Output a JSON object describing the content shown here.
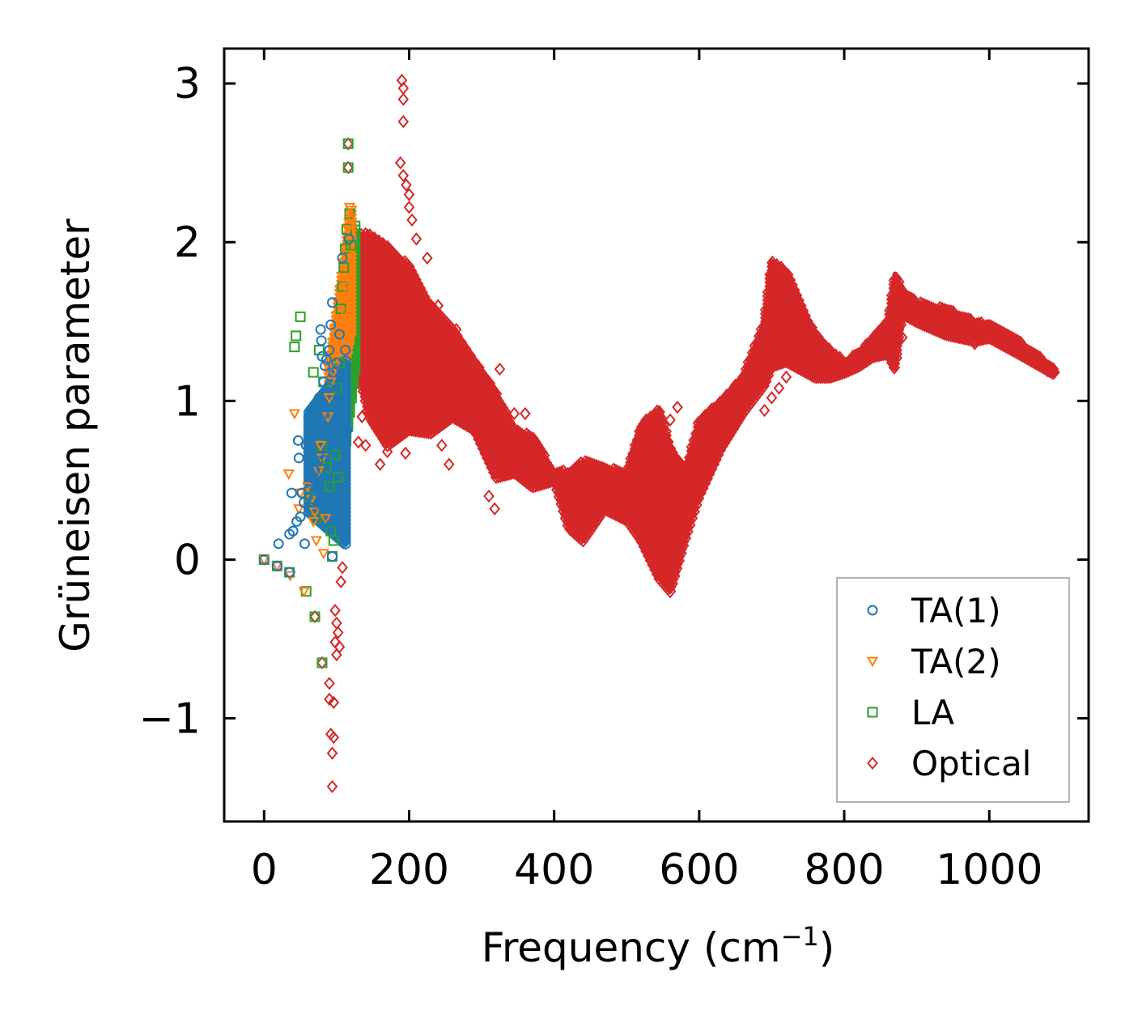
{
  "chart_data": {
    "type": "scatter",
    "title": "",
    "xlabel": "Frequency (cm",
    "xlabel_sup": "−1",
    "xlabel_end": ")",
    "ylabel": "Grüneisen parameter",
    "xlim": [
      -55,
      1137
    ],
    "ylim": [
      -1.65,
      3.22
    ],
    "xticks": [
      0,
      200,
      400,
      600,
      800,
      1000
    ],
    "xtick_labels": [
      "0",
      "200",
      "400",
      "600",
      "800",
      "1000"
    ],
    "yticks": [
      -1,
      0,
      1,
      2,
      3
    ],
    "ytick_labels": [
      "−1",
      "0",
      "1",
      "2",
      "3"
    ],
    "legend_position": "lower-right",
    "series": [
      {
        "name": "TA(1)",
        "marker": "circle",
        "color": "#1f77b4",
        "points": [
          [
            0,
            0
          ],
          [
            18,
            -0.04
          ],
          [
            20,
            0.1
          ],
          [
            35,
            0.16
          ],
          [
            35,
            -0.08
          ],
          [
            38,
            0.42
          ],
          [
            40,
            0.18
          ],
          [
            45,
            0.24
          ],
          [
            47,
            0.75
          ],
          [
            48,
            0.64
          ],
          [
            50,
            0.27
          ],
          [
            52,
            0.42
          ],
          [
            55,
            0.36
          ],
          [
            56,
            0.1
          ],
          [
            58,
            0.72
          ],
          [
            62,
            0.44
          ],
          [
            62,
            0.64
          ],
          [
            65,
            0.82
          ],
          [
            66,
            0.78
          ],
          [
            68,
            0.38
          ],
          [
            68,
            0.9
          ],
          [
            70,
            0.5
          ],
          [
            70,
            0.56
          ],
          [
            72,
            0.86
          ],
          [
            74,
            0.62
          ],
          [
            75,
            0.96
          ],
          [
            76,
            1.02
          ],
          [
            78,
            1.45
          ],
          [
            79,
            1.38
          ],
          [
            80,
            1.28
          ],
          [
            80,
            0.34
          ],
          [
            82,
            0.92
          ],
          [
            82,
            1.12
          ],
          [
            84,
            0.78
          ],
          [
            84,
            1.22
          ],
          [
            86,
            1.26
          ],
          [
            86,
            0.68
          ],
          [
            88,
            0.54
          ],
          [
            88,
            1.08
          ],
          [
            90,
            0.36
          ],
          [
            90,
            1.32
          ],
          [
            92,
            1.48
          ],
          [
            92,
            0.22
          ],
          [
            94,
            1.62
          ],
          [
            94,
            0.02
          ],
          [
            96,
            1.18
          ],
          [
            98,
            0.86
          ],
          [
            100,
            1.24
          ],
          [
            102,
            1.02
          ],
          [
            104,
            1.42
          ],
          [
            106,
            1.12
          ],
          [
            108,
            1.9
          ],
          [
            110,
            0.96
          ],
          [
            112,
            1.32
          ],
          [
            115,
            0.82
          ],
          [
            117,
            2.02
          ]
        ],
        "band": {
          "x": [
            62,
            112
          ],
          "ylow": [
            0.3,
            0.1
          ],
          "yhigh": [
            0.95,
            1.25
          ]
        }
      },
      {
        "name": "TA(2)",
        "marker": "triangle-down",
        "color": "#ff7f0e",
        "points": [
          [
            0,
            0
          ],
          [
            18,
            -0.04
          ],
          [
            34,
            0.54
          ],
          [
            36,
            -0.1
          ],
          [
            42,
            0.92
          ],
          [
            48,
            0.32
          ],
          [
            50,
            0.42
          ],
          [
            55,
            -0.2
          ],
          [
            60,
            0.46
          ],
          [
            65,
            0.38
          ],
          [
            68,
            0.24
          ],
          [
            70,
            0.3
          ],
          [
            72,
            0.12
          ],
          [
            75,
            0.56
          ],
          [
            78,
            0.72
          ],
          [
            80,
            0.64
          ],
          [
            82,
            0.04
          ],
          [
            85,
            0.26
          ],
          [
            88,
            0.9
          ],
          [
            90,
            1.02
          ],
          [
            92,
            1.12
          ],
          [
            95,
            1.18
          ],
          [
            98,
            1.22
          ],
          [
            100,
            1.38
          ],
          [
            104,
            1.48
          ],
          [
            108,
            1.52
          ],
          [
            110,
            1.56
          ],
          [
            112,
            1.72
          ],
          [
            114,
            1.92
          ],
          [
            116,
            2.08
          ],
          [
            118,
            2.22
          ],
          [
            120,
            2.15
          ]
        ],
        "band": {
          "x": [
            90,
            120
          ],
          "ylow": [
            0.7,
            1.4
          ],
          "yhigh": [
            1.2,
            2.2
          ]
        }
      },
      {
        "name": "LA",
        "marker": "square",
        "color": "#2ca02c",
        "points": [
          [
            0,
            0
          ],
          [
            18,
            -0.04
          ],
          [
            35,
            -0.08
          ],
          [
            42,
            1.34
          ],
          [
            44,
            1.41
          ],
          [
            50,
            1.53
          ],
          [
            58,
            -0.2
          ],
          [
            62,
            0.4
          ],
          [
            68,
            1.18
          ],
          [
            70,
            -0.36
          ],
          [
            72,
            0.26
          ],
          [
            76,
            1.32
          ],
          [
            80,
            -0.65
          ],
          [
            80,
            0.72
          ],
          [
            82,
            1.12
          ],
          [
            86,
            0.58
          ],
          [
            90,
            0.46
          ],
          [
            92,
            0.18
          ],
          [
            94,
            0.02
          ],
          [
            96,
            0.12
          ],
          [
            98,
            0.66
          ],
          [
            100,
            1.08
          ],
          [
            102,
            0.52
          ],
          [
            104,
            1.24
          ],
          [
            106,
            1.58
          ],
          [
            108,
            1.72
          ],
          [
            110,
            1.84
          ],
          [
            112,
            1.96
          ],
          [
            114,
            2.08
          ],
          [
            116,
            2.62
          ],
          [
            116,
            2.47
          ],
          [
            118,
            2.18
          ],
          [
            120,
            1.98
          ]
        ],
        "band": {
          "x": [
            100,
            125
          ],
          "ylow": [
            0.3,
            1.2
          ],
          "yhigh": [
            1.4,
            2.1
          ]
        }
      },
      {
        "name": "Optical",
        "marker": "diamond",
        "color": "#d62728",
        "points": [
          [
            70,
            -0.36
          ],
          [
            80,
            -0.65
          ],
          [
            90,
            -0.78
          ],
          [
            90,
            -0.88
          ],
          [
            92,
            -1.1
          ],
          [
            94,
            -1.22
          ],
          [
            94,
            -1.43
          ],
          [
            96,
            -0.9
          ],
          [
            96,
            -1.12
          ],
          [
            98,
            -0.32
          ],
          [
            98,
            -0.52
          ],
          [
            100,
            -0.4
          ],
          [
            100,
            -0.6
          ],
          [
            102,
            -0.46
          ],
          [
            104,
            -0.55
          ],
          [
            106,
            -0.14
          ],
          [
            108,
            -0.05
          ],
          [
            116,
            2.62
          ],
          [
            116,
            2.47
          ],
          [
            130,
            0.74
          ],
          [
            135,
            0.9
          ],
          [
            140,
            0.72
          ],
          [
            160,
            0.6
          ],
          [
            170,
            0.68
          ],
          [
            190,
            3.02
          ],
          [
            192,
            2.97
          ],
          [
            192,
            2.9
          ],
          [
            192,
            2.76
          ],
          [
            188,
            2.5
          ],
          [
            192,
            2.42
          ],
          [
            196,
            2.36
          ],
          [
            200,
            2.3
          ],
          [
            200,
            2.22
          ],
          [
            204,
            2.14
          ],
          [
            210,
            2.02
          ],
          [
            195,
            0.67
          ],
          [
            225,
            1.9
          ],
          [
            240,
            1.6
          ],
          [
            245,
            0.72
          ],
          [
            255,
            0.6
          ],
          [
            265,
            1.45
          ],
          [
            290,
            1.18
          ],
          [
            310,
            0.4
          ],
          [
            318,
            0.32
          ],
          [
            325,
            1.2
          ],
          [
            345,
            0.92
          ],
          [
            360,
            0.92
          ],
          [
            330,
            0.84
          ],
          [
            410,
            0.52
          ],
          [
            560,
            0.88
          ],
          [
            570,
            0.96
          ],
          [
            580,
            0.54
          ],
          [
            585,
            0.4
          ],
          [
            690,
            0.94
          ],
          [
            700,
            1.02
          ],
          [
            710,
            1.08
          ],
          [
            720,
            1.15
          ],
          [
            770,
            1.3
          ],
          [
            870,
            1.68
          ],
          [
            880,
            1.4
          ],
          [
            980,
            1.36
          ],
          [
            985,
            1.42
          ],
          [
            1080,
            1.19
          ],
          [
            1090,
            1.18
          ]
        ],
        "band": {
          "x": [
            125,
            145,
            170,
            200,
            230,
            260,
            290,
            320,
            345,
            370,
            400,
            420,
            440,
            470,
            500,
            520,
            545,
            560,
            580,
            600,
            630,
            660,
            690,
            700,
            720,
            740,
            760,
            780,
            800,
            820,
            840,
            860,
            870,
            880,
            900,
            940,
            980,
            1000,
            1040,
            1090
          ],
          "ylow": [
            1.3,
            0.9,
            0.72,
            0.82,
            0.8,
            0.9,
            0.82,
            0.52,
            0.55,
            0.46,
            0.5,
            0.2,
            0.12,
            0.32,
            0.25,
            0.12,
            -0.12,
            -0.2,
            0.12,
            0.4,
            0.7,
            0.92,
            1.1,
            1.22,
            1.25,
            1.2,
            1.15,
            1.15,
            1.18,
            1.22,
            1.28,
            1.3,
            1.2,
            1.55,
            1.5,
            1.42,
            1.38,
            1.4,
            1.3,
            1.17
          ],
          "yhigh": [
            2.05,
            2.05,
            1.98,
            1.85,
            1.6,
            1.45,
            1.25,
            1.05,
            0.82,
            0.78,
            0.55,
            0.56,
            0.62,
            0.58,
            0.55,
            0.85,
            0.95,
            0.72,
            0.55,
            0.88,
            1.0,
            1.15,
            1.5,
            1.88,
            1.82,
            1.6,
            1.42,
            1.32,
            1.25,
            1.3,
            1.4,
            1.5,
            1.8,
            1.7,
            1.62,
            1.58,
            1.5,
            1.48,
            1.38,
            1.2
          ]
        }
      }
    ]
  }
}
